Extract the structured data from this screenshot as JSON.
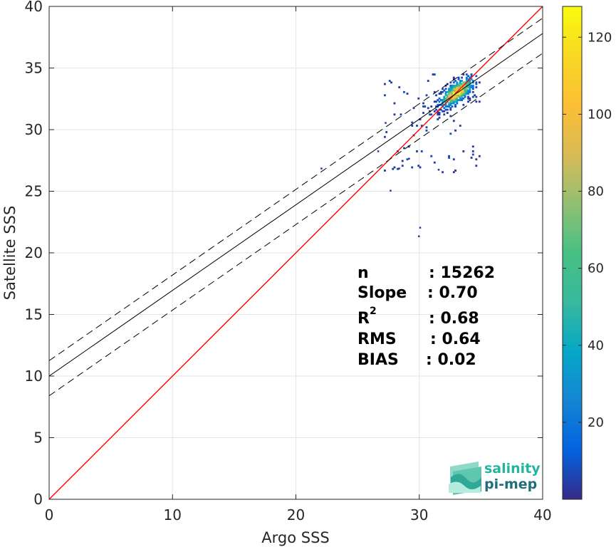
{
  "chart_data": {
    "type": "heatmap",
    "subtype": "density-scatter with regression",
    "title": "",
    "xlabel": "Argo SSS",
    "ylabel": "Satellite SSS",
    "xlim": [
      0,
      40
    ],
    "ylim": [
      0,
      40
    ],
    "xticks": [
      "0",
      "10",
      "20",
      "30",
      "40"
    ],
    "yticks": [
      "0",
      "5",
      "10",
      "15",
      "20",
      "25",
      "30",
      "35",
      "40"
    ],
    "grid": true,
    "colorbar": {
      "min": 0,
      "max": 128,
      "ticks": [
        "20",
        "40",
        "60",
        "80",
        "100",
        "120"
      ],
      "tick_values": [
        20,
        40,
        60,
        80,
        100,
        120
      ],
      "colormap": "parula"
    },
    "density": {
      "center": [
        33.0,
        33.0
      ],
      "spread_major": 1.1,
      "spread_minor": 0.45,
      "angle_deg": 40,
      "peak": 125,
      "outliers": [
        [
          22.0,
          26.8
        ],
        [
          27.6,
          25.0
        ],
        [
          30.0,
          22.0
        ],
        [
          29.9,
          21.3
        ],
        [
          27.2,
          30.5
        ],
        [
          26.6,
          28.2
        ],
        [
          28.3,
          26.8
        ],
        [
          31.5,
          26.7
        ],
        [
          29.1,
          27.6
        ]
      ]
    },
    "lines": [
      {
        "kind": "identity",
        "color": "#ff0000",
        "style": "solid",
        "intercept": 0,
        "slope": 1
      },
      {
        "kind": "regression",
        "color": "#000000",
        "style": "solid",
        "intercept": 10.0,
        "slope": 0.695
      },
      {
        "kind": "upper-bound",
        "color": "#000000",
        "style": "dashed",
        "intercept": 11.25,
        "slope": 0.695
      },
      {
        "kind": "lower-bound",
        "color": "#000000",
        "style": "dashed",
        "intercept": 8.4,
        "slope": 0.695
      }
    ],
    "stats": [
      {
        "label": "n",
        "value": ": 15262"
      },
      {
        "label": "Slope",
        "value": ": 0.70"
      },
      {
        "label": "R",
        "sup": "2",
        "value": ": 0.68"
      },
      {
        "label": "RMS",
        "value": ": 0.64"
      },
      {
        "label": "BIAS",
        "value": ": 0.02"
      }
    ]
  },
  "logo": {
    "line1": "salinity",
    "line2": "pi-mep",
    "color1": "#22b5a0",
    "color2": "#1f6e7a"
  }
}
